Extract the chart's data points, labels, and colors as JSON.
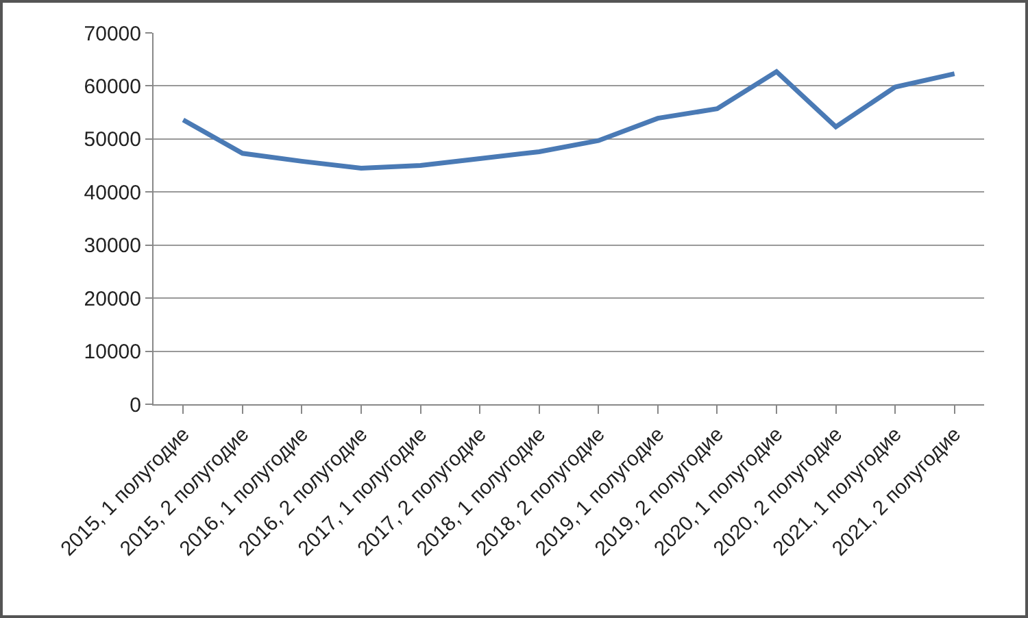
{
  "chart_data": {
    "type": "line",
    "categories": [
      "2015, 1 полугодие",
      "2015, 2 полугодие",
      "2016, 1 полугодие",
      "2016, 2 полугодие",
      "2017, 1 полугодие",
      "2017, 2 полугодие",
      "2018, 1 полугодие",
      "2018, 2 полугодие",
      "2019, 1 полугодие",
      "2019, 2 полугодие",
      "2020, 1 полугодие",
      "2020, 2 полугодие",
      "2021, 1 полугодие",
      "2021, 2 полугодие"
    ],
    "series": [
      {
        "color": "#4a7ab5",
        "values": [
          53600,
          47300,
          45800,
          44500,
          45000,
          46300,
          47600,
          49700,
          53900,
          55700,
          62700,
          52300,
          59800,
          62300
        ]
      }
    ],
    "ylim": [
      0,
      70000
    ],
    "yticks": [
      0,
      10000,
      20000,
      30000,
      40000,
      50000,
      60000,
      70000
    ],
    "grid": "y",
    "marker": "none",
    "line_style": "solid"
  }
}
